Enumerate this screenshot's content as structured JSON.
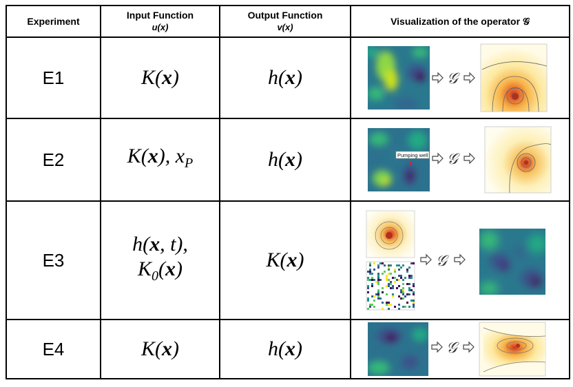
{
  "headers": {
    "experiment": "Experiment",
    "input": "Input Function",
    "input_sub": "u(x)",
    "output": "Output Function",
    "output_sub": "v(x)",
    "visualization": "Visualization of the operator 𝒢"
  },
  "rows": [
    {
      "id": "E1",
      "input": "K(𝒙)",
      "output": "h(𝒙)"
    },
    {
      "id": "E2",
      "input": "K(𝒙), x_P",
      "output": "h(𝒙)",
      "annotation": "Pumping well"
    },
    {
      "id": "E3",
      "input_line1": "h(𝒙, t),",
      "input_line2": "K0(𝒙)",
      "output": "K(𝒙)"
    },
    {
      "id": "E4",
      "input": "K(𝒙)",
      "output": "h(𝒙)"
    }
  ],
  "operator_symbol": "𝒢",
  "colors": {
    "viridis_dark": "#440154",
    "viridis_mid": "#21918c",
    "viridis_light": "#fde725",
    "head_hot": "#e8692a",
    "head_cool": "#fffbe0"
  }
}
